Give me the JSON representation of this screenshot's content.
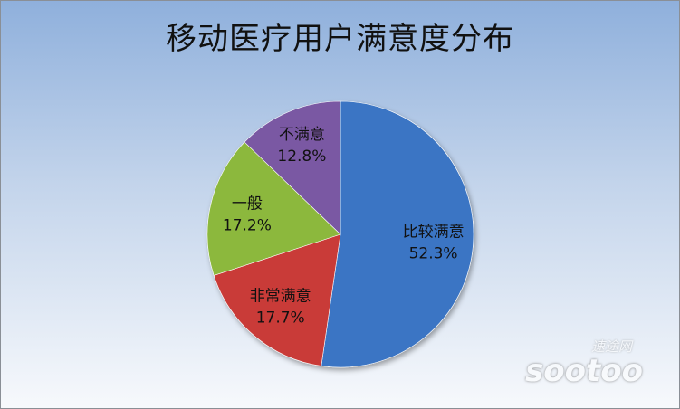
{
  "chart_data": {
    "type": "pie",
    "title": "移动医疗用户满意度分布",
    "slices": [
      {
        "label": "比较满意",
        "value": 52.3,
        "value_label": "52.3%",
        "color": "#3a74c4"
      },
      {
        "label": "非常满意",
        "value": 17.7,
        "value_label": "17.7%",
        "color": "#c93a37"
      },
      {
        "label": "一般",
        "value": 17.2,
        "value_label": "17.2%",
        "color": "#8cb83e"
      },
      {
        "label": "不满意",
        "value": 12.8,
        "value_label": "12.8%",
        "color": "#7a59a3"
      }
    ]
  },
  "watermark": {
    "cn": "速途网",
    "en": "sootoo"
  }
}
